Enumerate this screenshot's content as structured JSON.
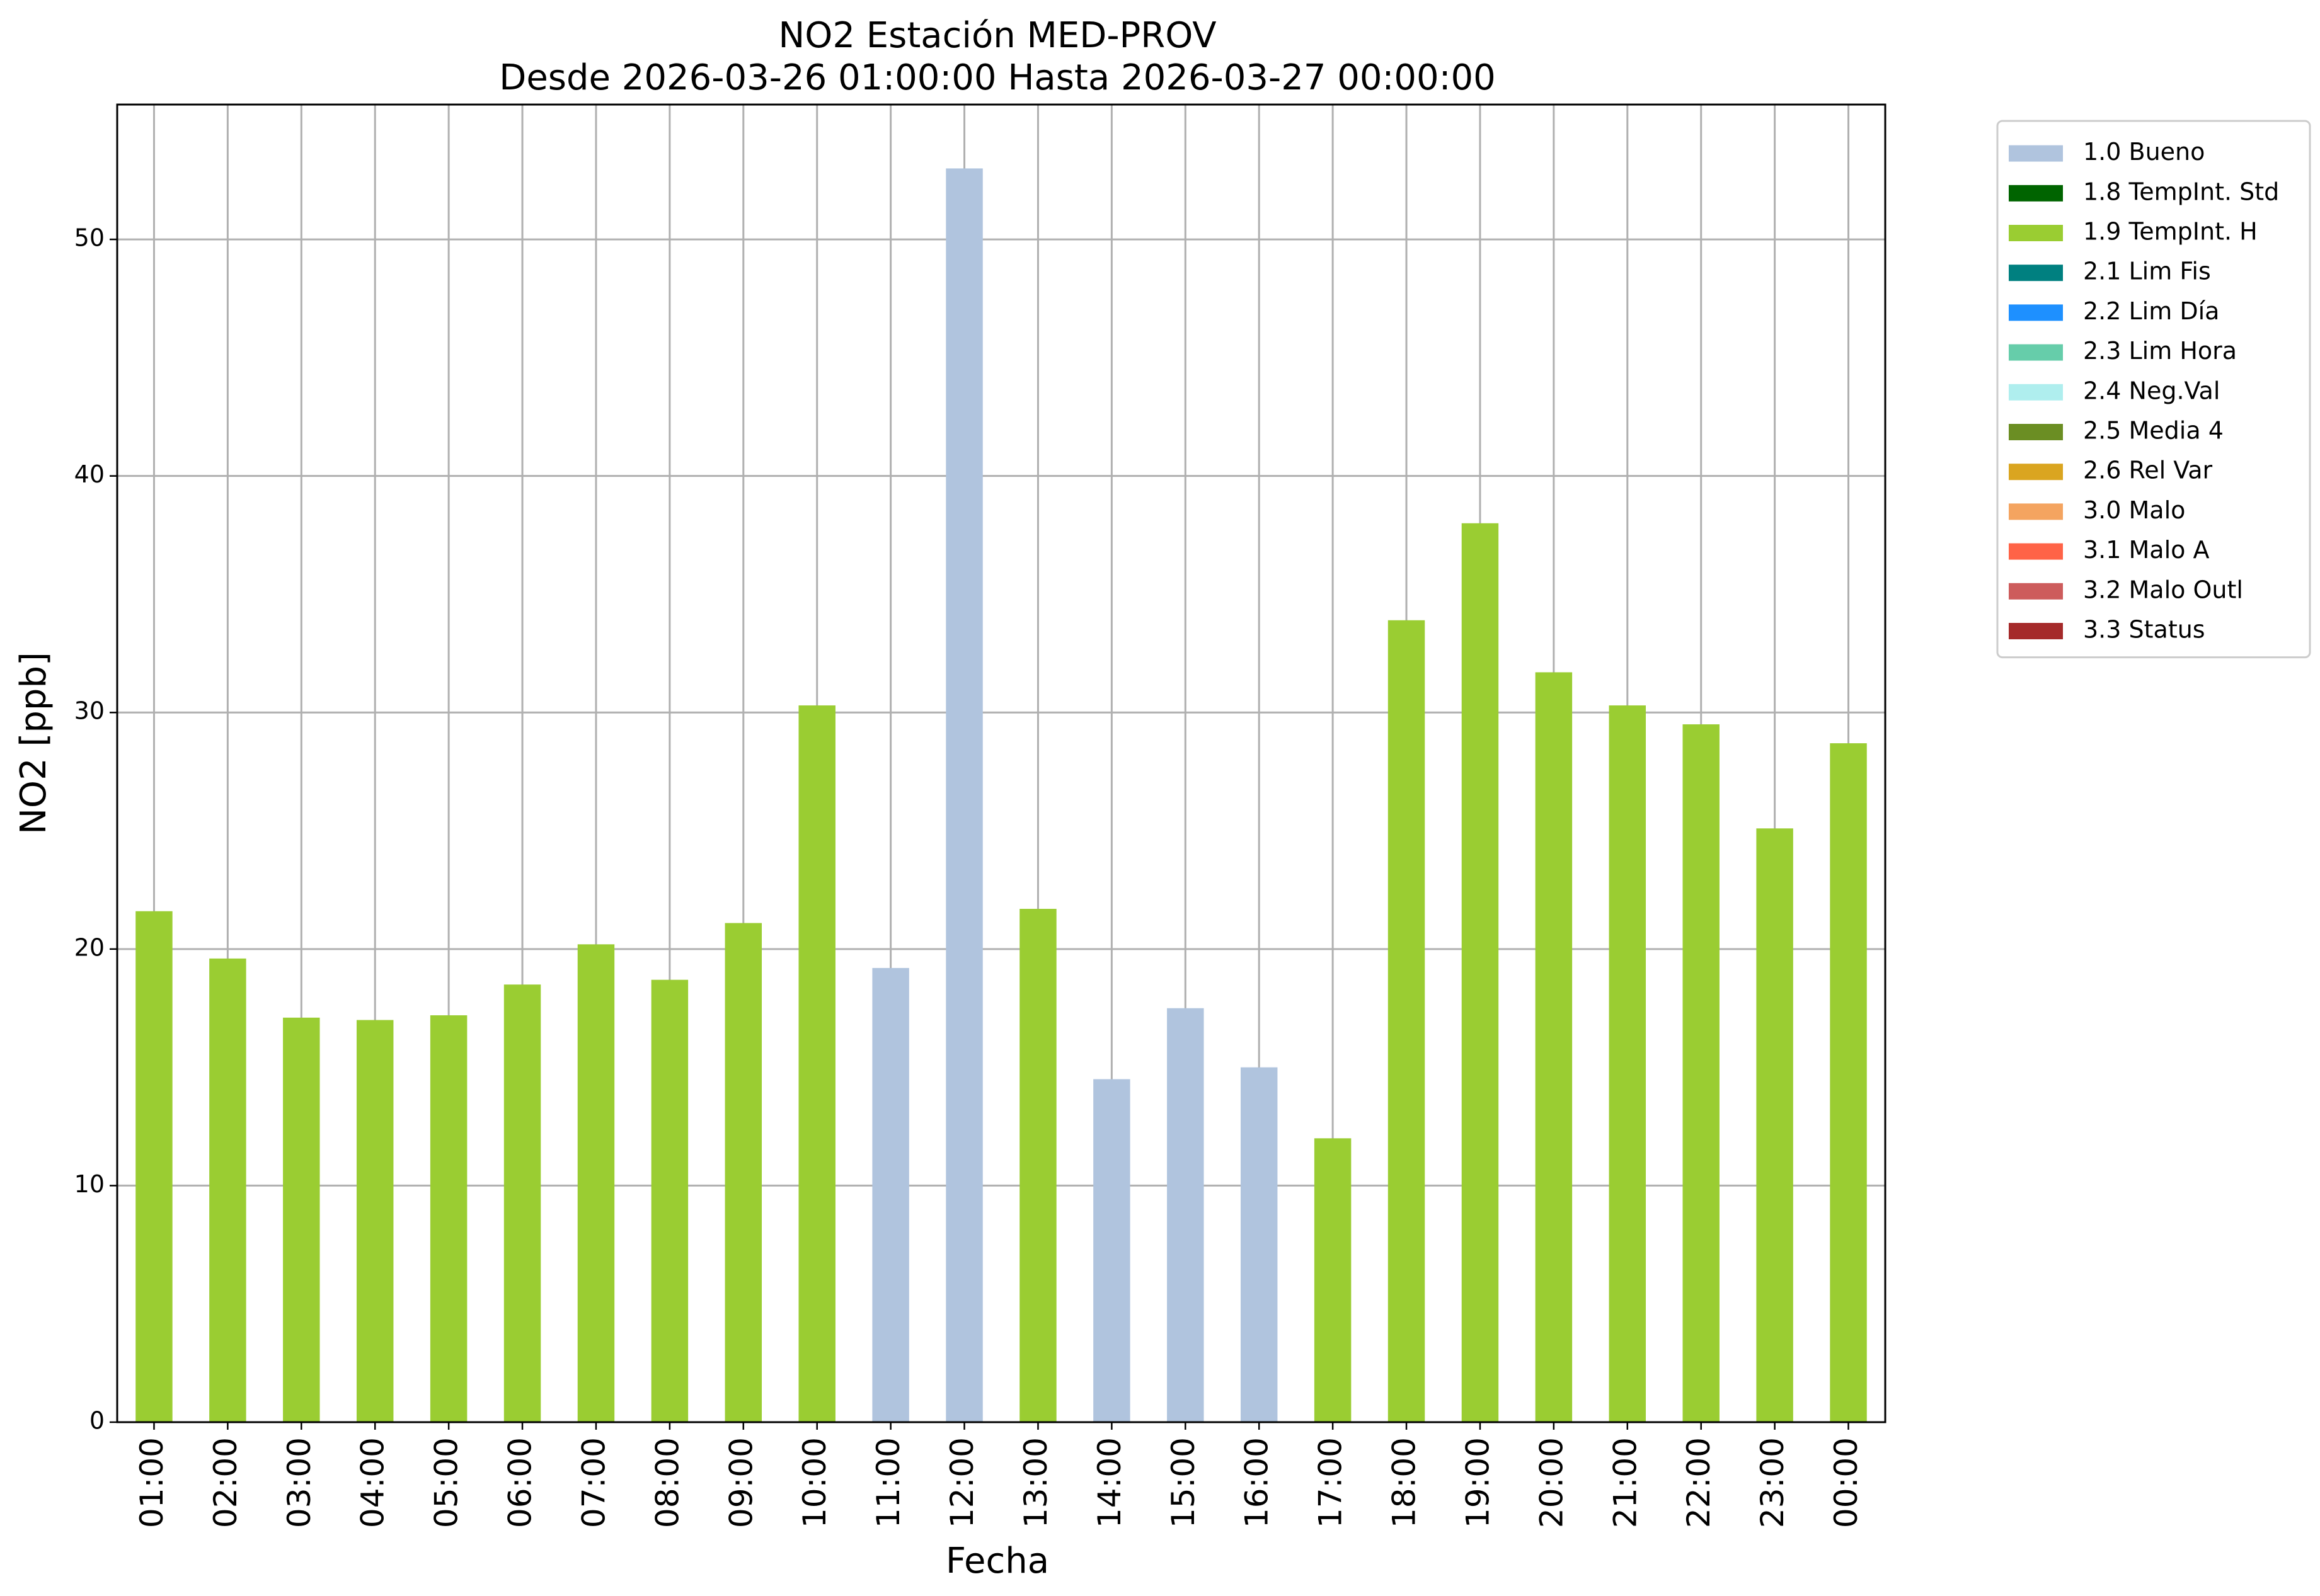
{
  "chart_data": {
    "type": "bar",
    "title": "NO2 Estación MED-PROV",
    "subtitle": "Desde 2026-03-26 01:00:00 Hasta 2026-03-27 00:00:00",
    "xlabel": "Fecha",
    "ylabel": "NO2 [ppb]",
    "ylim": [
      0,
      55.7
    ],
    "yticks": [
      0,
      10,
      20,
      30,
      40,
      50
    ],
    "grid": true,
    "legend_position": "outside top-right",
    "categories": [
      "01:00",
      "02:00",
      "03:00",
      "04:00",
      "05:00",
      "06:00",
      "07:00",
      "08:00",
      "09:00",
      "10:00",
      "11:00",
      "12:00",
      "13:00",
      "14:00",
      "15:00",
      "16:00",
      "17:00",
      "18:00",
      "19:00",
      "20:00",
      "21:00",
      "22:00",
      "23:00",
      "00:00"
    ],
    "values": [
      21.6,
      19.6,
      17.1,
      17.0,
      17.2,
      18.5,
      20.2,
      18.7,
      21.1,
      30.3,
      19.2,
      53.0,
      21.7,
      14.5,
      17.5,
      15.0,
      12.0,
      33.9,
      38.0,
      31.7,
      30.3,
      29.5,
      25.1,
      28.7
    ],
    "flags": [
      "1.9 TempInt. H",
      "1.9 TempInt. H",
      "1.9 TempInt. H",
      "1.9 TempInt. H",
      "1.9 TempInt. H",
      "1.9 TempInt. H",
      "1.9 TempInt. H",
      "1.9 TempInt. H",
      "1.9 TempInt. H",
      "1.9 TempInt. H",
      "1.0 Bueno",
      "1.0 Bueno",
      "1.9 TempInt. H",
      "1.0 Bueno",
      "1.0 Bueno",
      "1.0 Bueno",
      "1.9 TempInt. H",
      "1.9 TempInt. H",
      "1.9 TempInt. H",
      "1.9 TempInt. H",
      "1.9 TempInt. H",
      "1.9 TempInt. H",
      "1.9 TempInt. H",
      "1.9 TempInt. H"
    ],
    "legend": [
      {
        "label": "1.0 Bueno",
        "color": "#b0c4de"
      },
      {
        "label": "1.8 TempInt. Std",
        "color": "#006400"
      },
      {
        "label": "1.9 TempInt. H",
        "color": "#9acd32"
      },
      {
        "label": "2.1 Lim Fis",
        "color": "#008080"
      },
      {
        "label": "2.2 Lim Día",
        "color": "#1e90ff"
      },
      {
        "label": "2.3 Lim Hora",
        "color": "#66cdaa"
      },
      {
        "label": "2.4 Neg.Val",
        "color": "#afeeee"
      },
      {
        "label": "2.5 Media 4",
        "color": "#6b8e23"
      },
      {
        "label": "2.6 Rel Var",
        "color": "#daa520"
      },
      {
        "label": "3.0 Malo",
        "color": "#f4a460"
      },
      {
        "label": "3.1 Malo A",
        "color": "#ff6347"
      },
      {
        "label": "3.2 Malo Outl",
        "color": "#cd5c5c"
      },
      {
        "label": "3.3 Status",
        "color": "#a52a2a"
      }
    ]
  }
}
